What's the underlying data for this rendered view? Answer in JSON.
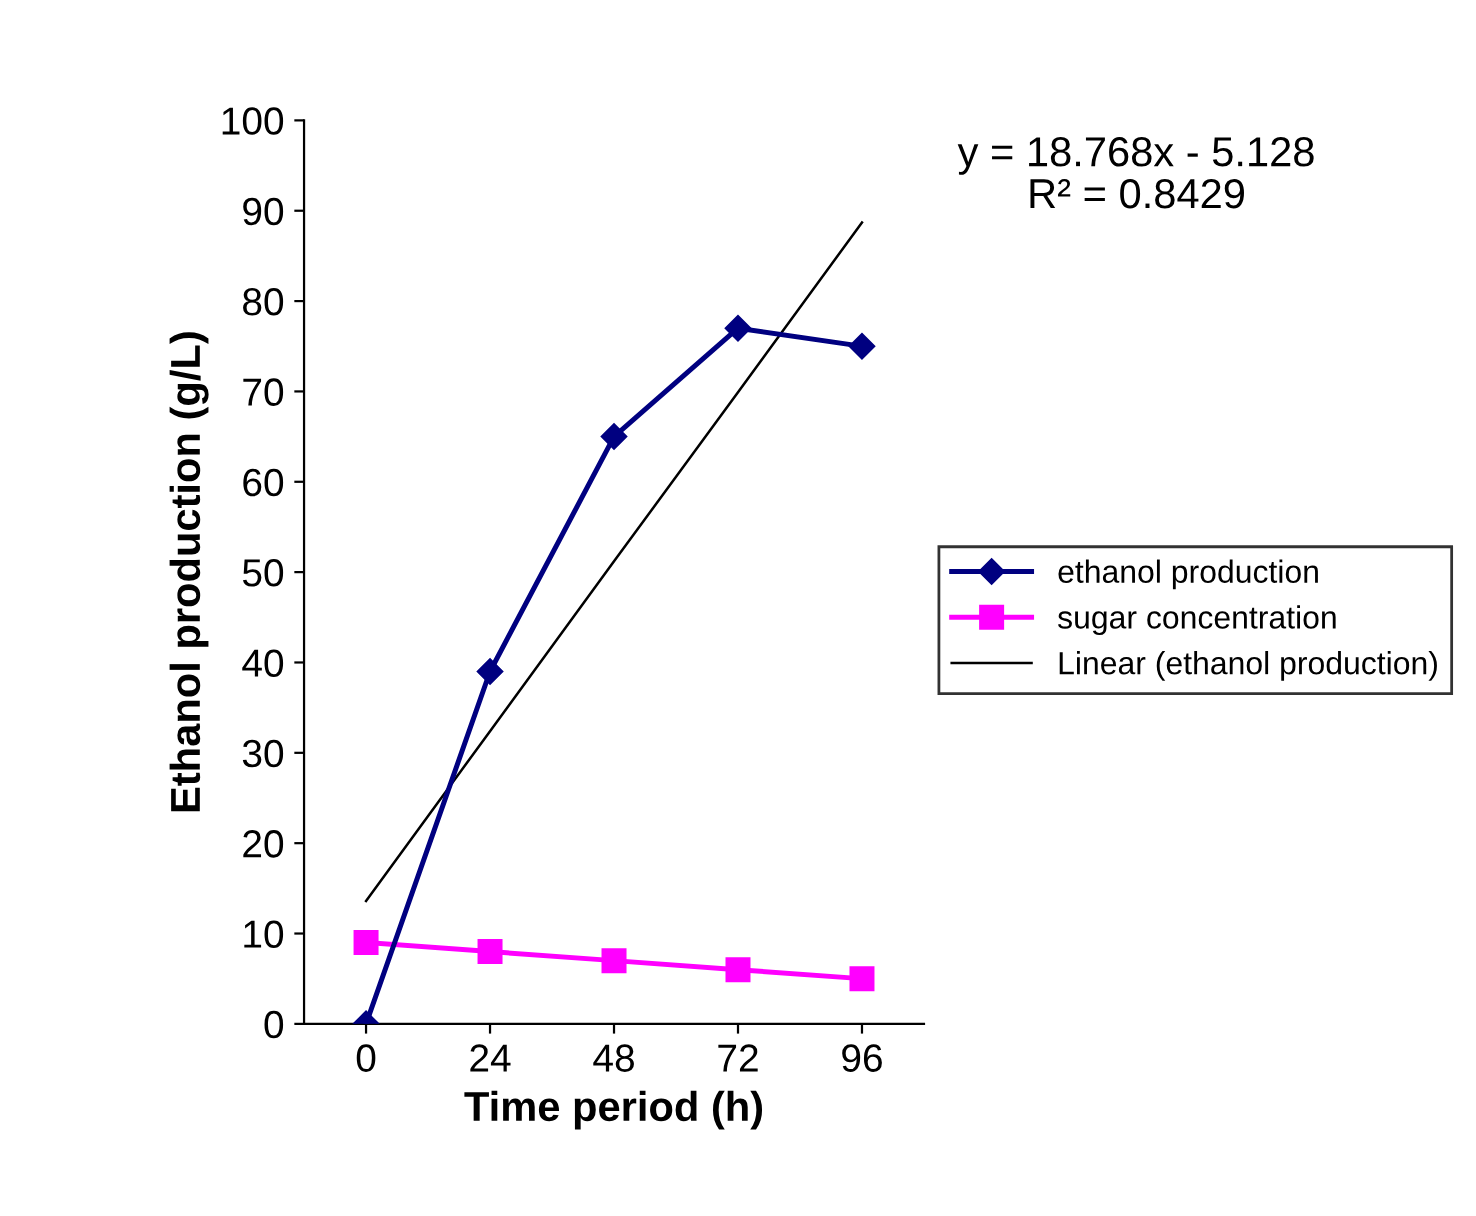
{
  "chart_data": {
    "type": "line",
    "xlabel": "Time period (h)",
    "ylabel": "Ethanol production (g/L)",
    "categories": [
      "0",
      "24",
      "48",
      "72",
      "96"
    ],
    "series": [
      {
        "name": "ethanol production",
        "color": "#000080",
        "marker": "diamond",
        "values": [
          0,
          39,
          65,
          77,
          75
        ]
      },
      {
        "name": "sugar concentration",
        "color": "#ff00ff",
        "marker": "square",
        "values": [
          9,
          8,
          7,
          6,
          5
        ]
      },
      {
        "name": "Linear (ethanol production)",
        "color": "#000000",
        "marker": "none",
        "values": [
          13.6,
          32.4,
          51.2,
          69.9,
          88.7
        ]
      }
    ],
    "ylim": [
      0,
      100
    ],
    "yticks": [
      0,
      10,
      20,
      30,
      40,
      50,
      60,
      70,
      80,
      90,
      100
    ],
    "annotations": [
      "y = 18.768x - 5.128\nR² = 0.8429"
    ],
    "grid": false,
    "legend": "right"
  }
}
